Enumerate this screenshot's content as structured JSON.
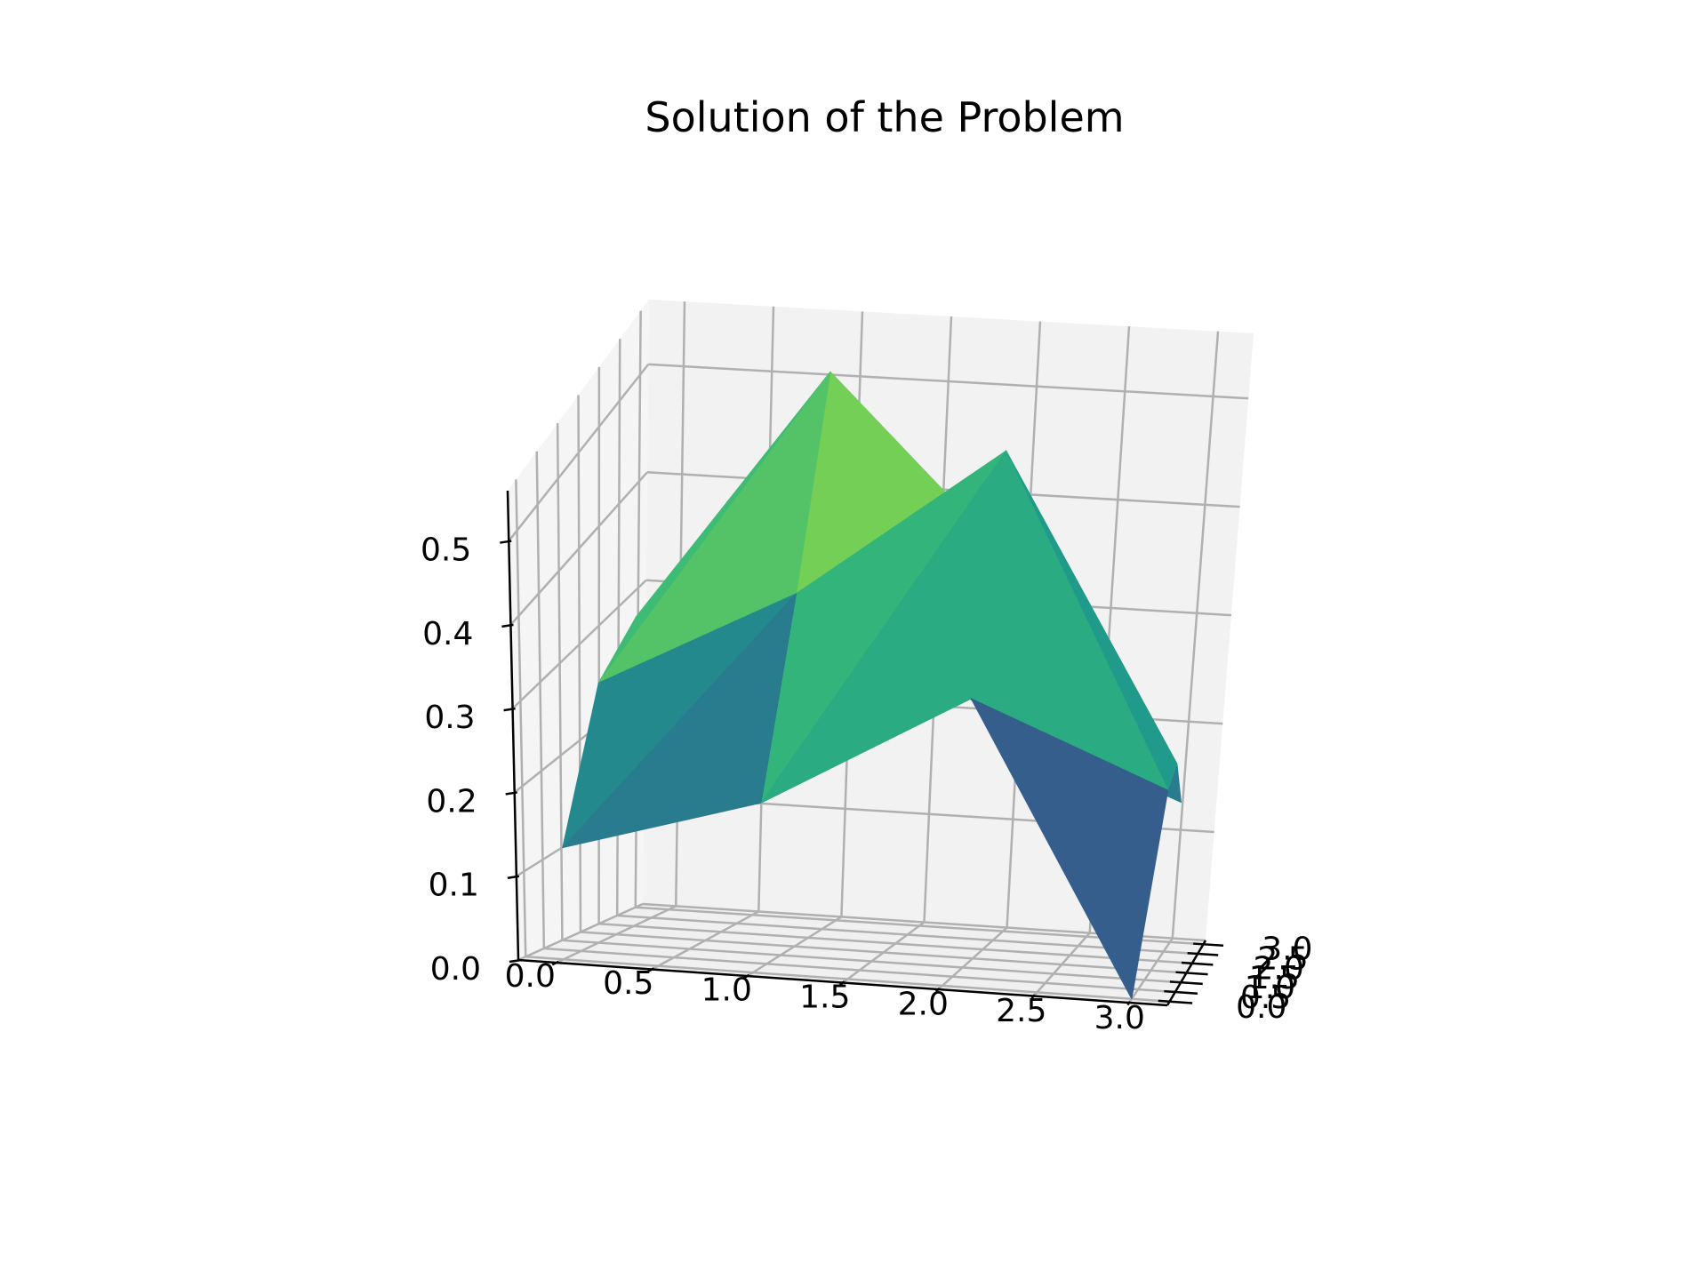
{
  "chart_data": {
    "type": "surface",
    "title": "Solution of the Problem",
    "xlabel": "",
    "ylabel": "",
    "zlabel": "",
    "x": [
      0.0,
      1.0,
      2.0,
      3.0
    ],
    "y": [
      0.0,
      1.0,
      2.0,
      3.0
    ],
    "z": [
      [
        0.13,
        0.19,
        0.31,
        0.0
      ],
      [
        0.28,
        0.38,
        0.53,
        0.19
      ],
      [
        0.31,
        0.56,
        0.38,
        0.19
      ],
      [
        0.19,
        0.28,
        0.19,
        0.13
      ]
    ],
    "x_ticks": [
      "0.0",
      "0.5",
      "1.0",
      "1.5",
      "2.0",
      "2.5",
      "3.0"
    ],
    "y_ticks": [
      "0.0",
      "0.5",
      "1.0",
      "1.5",
      "2.0",
      "2.5",
      "3.0"
    ],
    "z_ticks": [
      "0.0",
      "0.1",
      "0.2",
      "0.3",
      "0.4",
      "0.5"
    ],
    "xlim": [
      -0.2,
      3.2
    ],
    "ylim": [
      -0.2,
      3.2
    ],
    "zlim": [
      0.0,
      0.56
    ],
    "colormap": "viridis",
    "pane_color": "#f2f2f2",
    "grid": true
  }
}
